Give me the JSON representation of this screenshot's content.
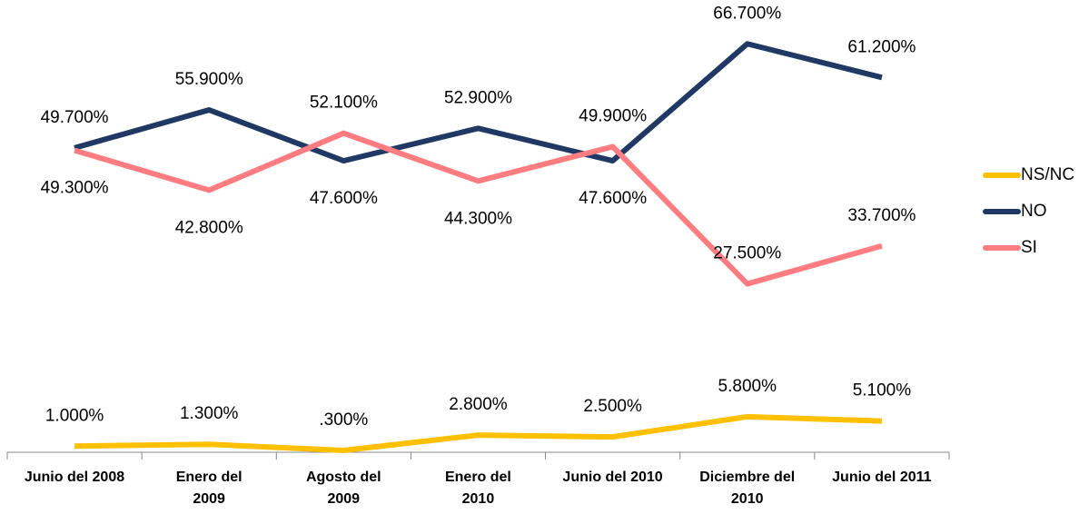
{
  "chart_data": {
    "type": "line",
    "categories": [
      "Junio del 2008",
      "Enero del\n2009",
      "Agosto del\n2009",
      "Enero del\n2010",
      "Junio del 2010",
      "Diciembre del\n2010",
      "Junio del 2011"
    ],
    "series": [
      {
        "name": "NS/NC",
        "color": "#ffc000",
        "values": [
          1.0,
          1.3,
          0.3,
          2.8,
          2.5,
          5.8,
          5.1
        ],
        "value_labels": [
          "1.000%",
          "1.300%",
          ".300%",
          "2.800%",
          "2.500%",
          "5.800%",
          "5.100%"
        ]
      },
      {
        "name": "NO",
        "color": "#1f3864",
        "values": [
          49.7,
          55.9,
          47.6,
          52.9,
          47.6,
          66.7,
          61.2
        ],
        "value_labels": [
          "49.700%",
          "55.900%",
          "47.600%",
          "52.900%",
          "47.600%",
          "66.700%",
          "61.200%"
        ]
      },
      {
        "name": "SI",
        "color": "#ff7c80",
        "values": [
          49.3,
          42.8,
          52.1,
          44.3,
          49.9,
          27.5,
          33.7
        ],
        "value_labels": [
          "49.300%",
          "42.800%",
          "52.100%",
          "44.300%",
          "49.900%",
          "27.500%",
          "33.700%"
        ]
      }
    ],
    "ylim": [
      0,
      70
    ],
    "legend": "right"
  }
}
